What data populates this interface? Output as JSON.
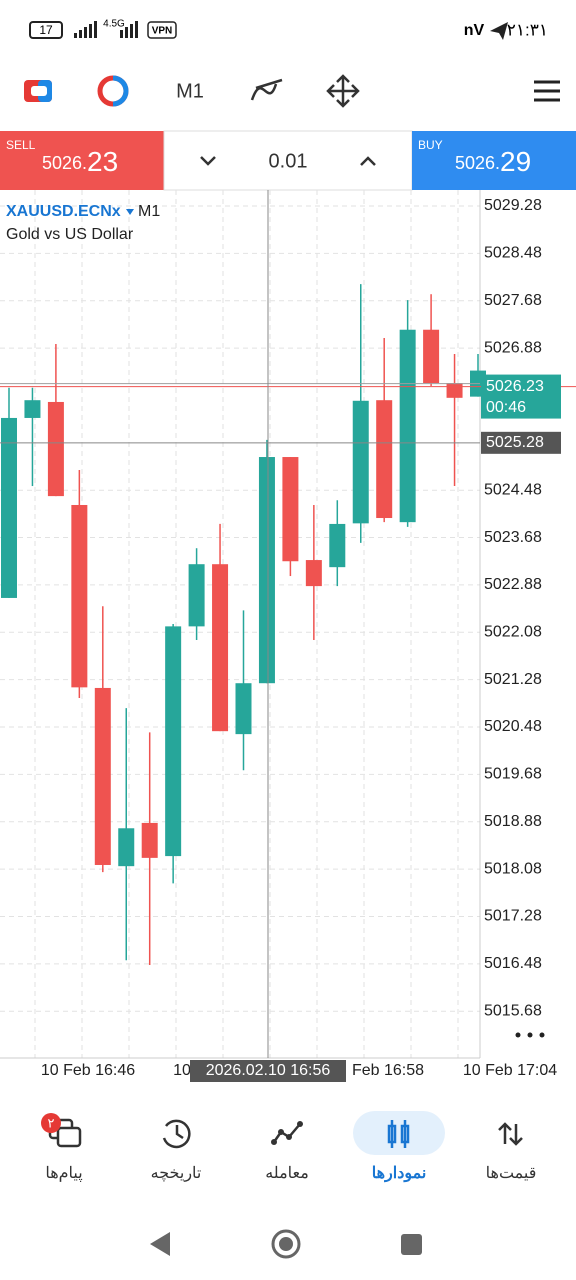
{
  "status_bar": {
    "battery": "17",
    "network": "4.5G",
    "vpn": "VPN",
    "carrier_icon": "nV",
    "time": "۲۱:۳۱"
  },
  "toolbar": {
    "timeframe": "M1"
  },
  "trade_panel": {
    "sell_label": "SELL",
    "sell_price_main": "5026.",
    "sell_price_big": "23",
    "volume": "0.01",
    "buy_label": "BUY",
    "buy_price_main": "5026.",
    "buy_price_big": "29"
  },
  "chart_data": {
    "type": "candlestick",
    "symbol": "XAUUSD.ECNx",
    "timeframe": "M1",
    "description": "Gold vs US Dollar",
    "open": [
      5022.66,
      5025.7,
      5025.97,
      5024.23,
      5021.14,
      5018.13,
      5018.86,
      5018.3,
      5022.18,
      5023.23,
      5020.36,
      5021.22,
      5025.04,
      5023.3,
      5023.18,
      5023.92,
      5026.0,
      5023.94,
      5027.19,
      5026.29,
      5026.06
    ],
    "high": [
      5026.21,
      5026.21,
      5026.95,
      5024.82,
      5022.52,
      5020.8,
      5020.39,
      5022.22,
      5023.5,
      5023.91,
      5022.45,
      5025.33,
      5025.04,
      5024.23,
      5024.31,
      5027.96,
      5027.05,
      5027.69,
      5027.79,
      5026.78,
      5026.78
    ],
    "low": [
      5022.66,
      5024.55,
      5024.38,
      5020.97,
      5018.03,
      5016.54,
      5016.46,
      5017.84,
      5021.95,
      5020.41,
      5019.75,
      5021.22,
      5023.03,
      5021.95,
      5022.86,
      5023.59,
      5023.94,
      5023.86,
      5026.24,
      5024.55,
      5026.06
    ],
    "close": [
      5025.7,
      5026.0,
      5024.38,
      5021.15,
      5018.15,
      5018.77,
      5018.27,
      5022.18,
      5023.23,
      5020.41,
      5021.22,
      5025.04,
      5023.28,
      5022.86,
      5023.91,
      5025.99,
      5024.01,
      5027.19,
      5026.29,
      5026.04,
      5026.5
    ],
    "up_color": "#26a69a",
    "down_color": "#ef5350",
    "ylim": [
      5014.89,
      5029.55
    ],
    "yticks": [
      5029.28,
      5028.48,
      5027.68,
      5026.88,
      5024.48,
      5023.68,
      5022.88,
      5022.08,
      5021.28,
      5020.48,
      5019.68,
      5018.88,
      5018.08,
      5017.28,
      5016.48,
      5015.68
    ],
    "x_labels": [
      "10 Feb 16:46",
      "10",
      "Feb 16:58",
      "10 Feb 17:04"
    ],
    "crosshair_time": "2026.02.10 16:56",
    "crosshair_price": 5025.28,
    "bid_price": 5026.23,
    "bar_countdown": "00:46"
  },
  "bottom_nav": {
    "messages": "پیام‌ها",
    "messages_badge": "۲",
    "history": "تاریخچه",
    "trade": "معامله",
    "charts": "نمودارها",
    "quotes": "قیمت‌ها"
  }
}
